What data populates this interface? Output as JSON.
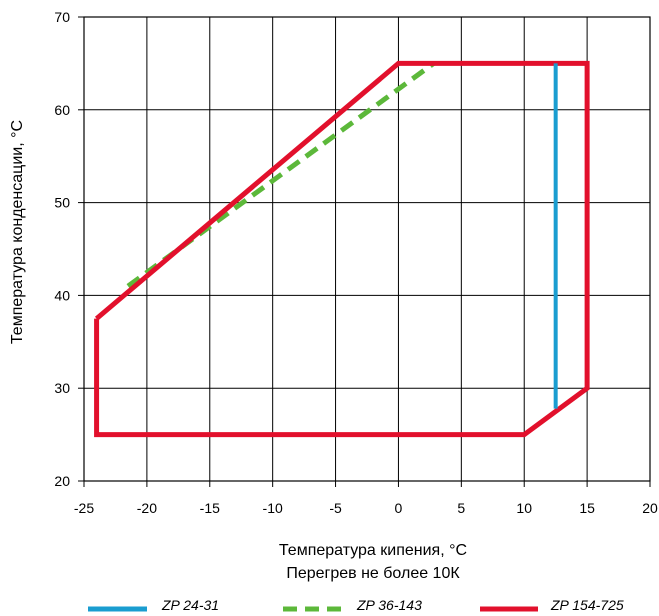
{
  "chart_data": {
    "type": "line",
    "xlabel": "Температура кипения, °С",
    "xlabel_note": "Перегрев не более 10К",
    "ylabel": "Температура конденсации, °С",
    "xlim": [
      -25,
      20
    ],
    "ylim": [
      20,
      70
    ],
    "xticks": [
      -25,
      -20,
      -15,
      -10,
      -5,
      0,
      5,
      10,
      15,
      20
    ],
    "yticks": [
      20,
      30,
      40,
      50,
      60,
      70
    ],
    "grid": true,
    "legend_position": "bottom",
    "series": [
      {
        "name": "ZP 24-31",
        "color": "#1a9dd0",
        "style": "solid",
        "x": [
          12.5,
          12.5
        ],
        "y": [
          65,
          27.8
        ]
      },
      {
        "name": "ZP 36-143",
        "color": "#5cb83a",
        "style": "dashed",
        "x": [
          -21.5,
          2.8
        ],
        "y": [
          41,
          65
        ]
      },
      {
        "name": "ZP 154-725",
        "color": "#e2102c",
        "style": "solid",
        "x": [
          -24,
          -24,
          10,
          15,
          15,
          0,
          -24
        ],
        "y": [
          37.5,
          25,
          25,
          30,
          65,
          65,
          37.5
        ]
      }
    ]
  }
}
